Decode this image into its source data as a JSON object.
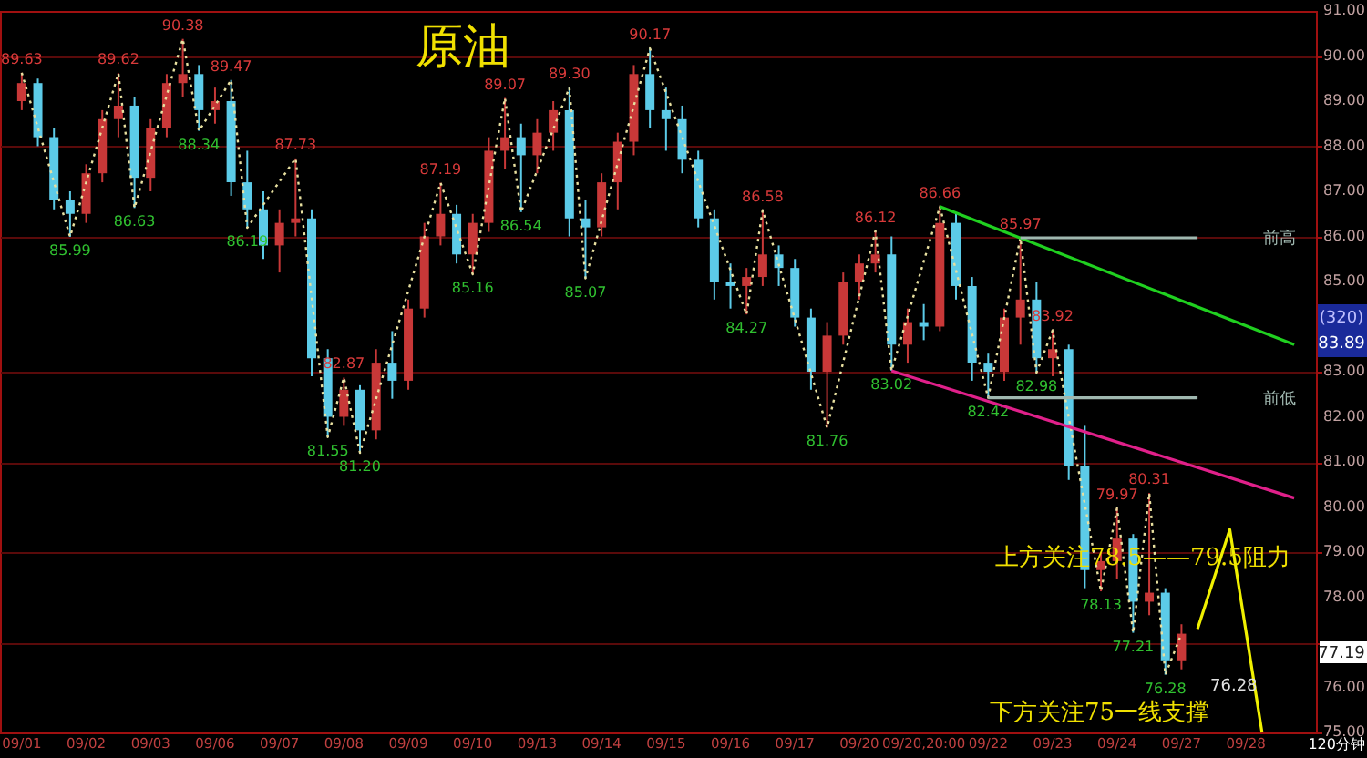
{
  "chart_data": {
    "type": "candlestick",
    "title": "原油",
    "categories": [
      "09/01",
      null,
      null,
      null,
      "09/02",
      null,
      null,
      null,
      "09/03",
      null,
      null,
      null,
      "09/06",
      null,
      null,
      null,
      "09/07",
      null,
      null,
      null,
      "09/08",
      null,
      null,
      null,
      "09/09",
      null,
      null,
      null,
      "09/10",
      null,
      null,
      null,
      "09/13",
      null,
      null,
      null,
      "09/14",
      null,
      null,
      null,
      "09/15",
      null,
      null,
      null,
      "09/16",
      null,
      null,
      null,
      "09/17",
      null,
      null,
      null,
      "09/20",
      null,
      null,
      null,
      "09/20,20:00",
      null,
      null,
      null,
      "09/22",
      null,
      null,
      null,
      "09/23",
      null,
      null,
      null,
      "09/24",
      null,
      null,
      null,
      "09/27",
      null,
      null,
      null,
      "09/28",
      null,
      null,
      null
    ],
    "ohlc": [
      [
        89.0,
        89.63,
        88.8,
        89.4
      ],
      [
        89.4,
        89.5,
        88.0,
        88.2
      ],
      [
        88.2,
        88.4,
        86.6,
        86.8
      ],
      [
        86.8,
        87.0,
        85.99,
        86.5
      ],
      [
        86.5,
        87.6,
        86.3,
        87.4
      ],
      [
        87.4,
        88.8,
        87.2,
        88.6
      ],
      [
        88.6,
        89.62,
        88.2,
        88.9
      ],
      [
        88.9,
        89.1,
        86.63,
        87.3
      ],
      [
        87.3,
        88.6,
        87.0,
        88.4
      ],
      [
        88.4,
        89.6,
        88.2,
        89.4
      ],
      [
        89.4,
        90.38,
        89.1,
        89.6
      ],
      [
        89.6,
        89.8,
        88.34,
        88.8
      ],
      [
        88.8,
        89.3,
        88.5,
        89.0
      ],
      [
        89.0,
        89.47,
        86.9,
        87.2
      ],
      [
        87.2,
        87.9,
        86.19,
        86.6
      ],
      [
        86.6,
        87.0,
        85.5,
        85.8
      ],
      [
        85.8,
        86.6,
        85.2,
        86.3
      ],
      [
        86.3,
        87.73,
        86.0,
        86.4
      ],
      [
        86.4,
        86.6,
        82.9,
        83.3
      ],
      [
        83.3,
        83.5,
        81.55,
        82.0
      ],
      [
        82.0,
        82.87,
        81.8,
        82.6
      ],
      [
        82.6,
        82.7,
        81.2,
        81.7
      ],
      [
        81.7,
        83.5,
        81.5,
        83.2
      ],
      [
        83.2,
        83.9,
        82.4,
        82.8
      ],
      [
        82.8,
        84.6,
        82.6,
        84.4
      ],
      [
        84.4,
        86.3,
        84.2,
        86.0
      ],
      [
        86.0,
        87.19,
        85.8,
        86.5
      ],
      [
        86.5,
        86.7,
        85.4,
        85.6
      ],
      [
        85.6,
        86.5,
        85.16,
        86.3
      ],
      [
        86.3,
        88.2,
        86.1,
        87.9
      ],
      [
        87.9,
        89.07,
        87.5,
        88.2
      ],
      [
        88.2,
        88.5,
        86.54,
        87.8
      ],
      [
        87.8,
        88.6,
        87.4,
        88.3
      ],
      [
        88.3,
        89.0,
        87.9,
        88.8
      ],
      [
        88.8,
        89.3,
        86.0,
        86.4
      ],
      [
        86.4,
        86.8,
        85.07,
        86.2
      ],
      [
        86.2,
        87.4,
        86.0,
        87.2
      ],
      [
        87.2,
        88.3,
        86.6,
        88.1
      ],
      [
        88.1,
        89.8,
        87.8,
        89.6
      ],
      [
        89.6,
        90.17,
        88.4,
        88.8
      ],
      [
        88.8,
        89.3,
        87.9,
        88.6
      ],
      [
        88.6,
        88.9,
        87.4,
        87.7
      ],
      [
        87.7,
        87.9,
        86.2,
        86.4
      ],
      [
        86.4,
        86.6,
        84.6,
        85.0
      ],
      [
        85.0,
        85.4,
        84.4,
        84.9
      ],
      [
        84.9,
        85.3,
        84.27,
        85.1
      ],
      [
        85.1,
        86.58,
        84.9,
        85.6
      ],
      [
        85.6,
        85.8,
        84.9,
        85.3
      ],
      [
        85.3,
        85.5,
        84.0,
        84.2
      ],
      [
        84.2,
        84.4,
        82.6,
        83.0
      ],
      [
        83.0,
        84.1,
        81.76,
        83.8
      ],
      [
        83.8,
        85.2,
        83.6,
        85.0
      ],
      [
        85.0,
        85.6,
        84.6,
        85.4
      ],
      [
        85.4,
        86.12,
        85.2,
        85.6
      ],
      [
        85.6,
        86.0,
        83.02,
        83.6
      ],
      [
        83.6,
        84.4,
        83.2,
        84.1
      ],
      [
        84.1,
        84.5,
        83.7,
        84.0
      ],
      [
        84.0,
        86.66,
        83.9,
        86.3
      ],
      [
        86.3,
        86.5,
        84.6,
        84.9
      ],
      [
        84.9,
        85.1,
        82.8,
        83.2
      ],
      [
        83.2,
        83.4,
        82.42,
        83.0
      ],
      [
        83.0,
        84.4,
        82.8,
        84.2
      ],
      [
        84.2,
        85.97,
        83.6,
        84.6
      ],
      [
        84.6,
        85.0,
        82.98,
        83.3
      ],
      [
        83.3,
        83.92,
        82.9,
        83.5
      ],
      [
        83.5,
        83.6,
        80.6,
        80.9
      ],
      [
        80.9,
        81.8,
        78.2,
        78.6
      ],
      [
        78.6,
        79.0,
        78.13,
        78.8
      ],
      [
        78.8,
        79.97,
        78.4,
        79.3
      ],
      [
        79.3,
        79.4,
        77.21,
        77.9
      ],
      [
        77.9,
        80.31,
        77.6,
        78.1
      ],
      [
        78.1,
        78.2,
        76.28,
        76.6
      ],
      [
        76.6,
        77.4,
        76.4,
        77.19
      ],
      null,
      null,
      null,
      null,
      null,
      null,
      null
    ],
    "colors": [
      "#c83838",
      "#5ccbe8",
      "#5ccbe8",
      "#5ccbe8",
      "#c83838",
      "#c83838",
      "#c83838",
      "#5ccbe8",
      "#c83838",
      "#c83838",
      "#c83838",
      "#5ccbe8",
      "#c83838",
      "#5ccbe8",
      "#5ccbe8",
      "#5ccbe8",
      "#c83838",
      "#c83838",
      "#5ccbe8",
      "#5ccbe8",
      "#c83838",
      "#5ccbe8",
      "#c83838",
      "#5ccbe8",
      "#c83838",
      "#c83838",
      "#c83838",
      "#5ccbe8",
      "#c83838",
      "#c83838",
      "#c83838",
      "#5ccbe8",
      "#c83838",
      "#c83838",
      "#5ccbe8",
      "#5ccbe8",
      "#c83838",
      "#c83838",
      "#c83838",
      "#5ccbe8",
      "#5ccbe8",
      "#5ccbe8",
      "#5ccbe8",
      "#5ccbe8",
      "#5ccbe8",
      "#c83838",
      "#c83838",
      "#5ccbe8",
      "#5ccbe8",
      "#5ccbe8",
      "#c83838",
      "#c83838",
      "#c83838",
      "#c83838",
      "#5ccbe8",
      "#c83838",
      "#5ccbe8",
      "#c83838",
      "#5ccbe8",
      "#5ccbe8",
      "#5ccbe8",
      "#c83838",
      "#c83838",
      "#5ccbe8",
      "#c83838",
      "#5ccbe8",
      "#5ccbe8",
      "#c83838",
      "#c83838",
      "#5ccbe8",
      "#c83838",
      "#5ccbe8",
      "#c83838",
      null,
      null,
      null,
      null,
      null,
      null,
      null
    ],
    "series": [
      {
        "type": "line",
        "line_style": "dotted",
        "color": "#e8e0a0",
        "values": [
          89.63,
          null,
          null,
          85.99,
          null,
          null,
          89.62,
          86.63,
          null,
          null,
          90.38,
          88.34,
          null,
          89.47,
          86.19,
          null,
          null,
          87.73,
          null,
          81.55,
          82.87,
          81.2,
          null,
          null,
          null,
          null,
          87.19,
          null,
          85.16,
          null,
          89.07,
          86.54,
          null,
          null,
          89.3,
          85.07,
          null,
          null,
          null,
          90.17,
          null,
          null,
          null,
          null,
          null,
          84.27,
          86.58,
          null,
          null,
          null,
          81.76,
          null,
          null,
          86.12,
          83.02,
          null,
          null,
          86.66,
          null,
          null,
          82.42,
          null,
          85.97,
          82.98,
          83.92,
          null,
          null,
          78.13,
          79.97,
          77.21,
          80.31,
          76.28,
          77.19,
          null,
          null,
          null,
          null,
          null,
          null,
          null
        ],
        "value_labels": [
          "89.63",
          null,
          null,
          "85.99",
          null,
          null,
          "89.62",
          "86.63",
          null,
          null,
          "90.38",
          "88.34",
          null,
          "89.47",
          "86.19",
          null,
          null,
          "87.73",
          null,
          "81.55",
          "82.87",
          "81.20",
          null,
          null,
          null,
          null,
          "87.19",
          null,
          "85.16",
          null,
          "89.07",
          "86.54",
          null,
          null,
          "89.30",
          "85.07",
          null,
          null,
          null,
          "90.17",
          null,
          null,
          null,
          null,
          null,
          "84.27",
          "86.58",
          null,
          null,
          null,
          "81.76",
          null,
          null,
          "86.12",
          "83.02",
          null,
          null,
          "86.66",
          null,
          null,
          "82.42",
          null,
          "85.97",
          "82.98",
          "83.92",
          null,
          null,
          "78.13",
          "79.97",
          "77.21",
          "80.31",
          "76.28",
          null,
          null,
          null,
          null,
          null,
          null,
          null,
          null
        ]
      },
      {
        "type": "line",
        "line_style": "solid",
        "color": "#20d020",
        "values": [
          null,
          null,
          null,
          null,
          null,
          null,
          null,
          null,
          null,
          null,
          null,
          null,
          null,
          null,
          null,
          null,
          null,
          null,
          null,
          null,
          null,
          null,
          null,
          null,
          null,
          null,
          null,
          null,
          null,
          null,
          null,
          null,
          null,
          null,
          null,
          null,
          null,
          null,
          null,
          null,
          null,
          null,
          null,
          null,
          null,
          null,
          null,
          null,
          null,
          null,
          null,
          null,
          null,
          null,
          null,
          null,
          null,
          86.66,
          null,
          null,
          null,
          null,
          null,
          null,
          null,
          null,
          null,
          null,
          null,
          null,
          null,
          null,
          null,
          null,
          null,
          null,
          null,
          null,
          null,
          83.6
        ]
      },
      {
        "type": "line",
        "line_style": "solid",
        "color": "#e0208a",
        "values": [
          null,
          null,
          null,
          null,
          null,
          null,
          null,
          null,
          null,
          null,
          null,
          null,
          null,
          null,
          null,
          null,
          null,
          null,
          null,
          null,
          null,
          null,
          null,
          null,
          null,
          null,
          null,
          null,
          null,
          null,
          null,
          null,
          null,
          null,
          null,
          null,
          null,
          null,
          null,
          null,
          null,
          null,
          null,
          null,
          null,
          null,
          null,
          null,
          null,
          null,
          null,
          null,
          null,
          null,
          83.02,
          null,
          null,
          null,
          null,
          null,
          null,
          null,
          null,
          null,
          null,
          null,
          null,
          null,
          null,
          null,
          null,
          null,
          null,
          null,
          null,
          null,
          null,
          null,
          null,
          80.2
        ]
      },
      {
        "type": "line",
        "line_style": "solid",
        "name": "前高",
        "color": "#a0b8b0",
        "values": [
          null,
          null,
          null,
          null,
          null,
          null,
          null,
          null,
          null,
          null,
          null,
          null,
          null,
          null,
          null,
          null,
          null,
          null,
          null,
          null,
          null,
          null,
          null,
          null,
          null,
          null,
          null,
          null,
          null,
          null,
          null,
          null,
          null,
          null,
          null,
          null,
          null,
          null,
          null,
          null,
          null,
          null,
          null,
          null,
          null,
          null,
          null,
          null,
          null,
          null,
          null,
          null,
          null,
          null,
          null,
          null,
          null,
          null,
          null,
          null,
          null,
          null,
          85.97,
          null,
          null,
          null,
          null,
          null,
          null,
          null,
          null,
          null,
          null,
          85.97,
          null,
          null,
          null,
          null,
          null,
          null
        ]
      },
      {
        "type": "line",
        "line_style": "solid",
        "name": "前低",
        "color": "#a0b8b0",
        "values": [
          null,
          null,
          null,
          null,
          null,
          null,
          null,
          null,
          null,
          null,
          null,
          null,
          null,
          null,
          null,
          null,
          null,
          null,
          null,
          null,
          null,
          null,
          null,
          null,
          null,
          null,
          null,
          null,
          null,
          null,
          null,
          null,
          null,
          null,
          null,
          null,
          null,
          null,
          null,
          null,
          null,
          null,
          null,
          null,
          null,
          null,
          null,
          null,
          null,
          null,
          null,
          null,
          null,
          null,
          null,
          null,
          null,
          null,
          null,
          null,
          82.42,
          null,
          null,
          null,
          null,
          null,
          null,
          null,
          null,
          null,
          null,
          null,
          null,
          82.42,
          null,
          null,
          null,
          null,
          null,
          null
        ]
      },
      {
        "type": "line",
        "line_style": "solid",
        "color": "#f0f000",
        "values": [
          null,
          null,
          null,
          null,
          null,
          null,
          null,
          null,
          null,
          null,
          null,
          null,
          null,
          null,
          null,
          null,
          null,
          null,
          null,
          null,
          null,
          null,
          null,
          null,
          null,
          null,
          null,
          null,
          null,
          null,
          null,
          null,
          null,
          null,
          null,
          null,
          null,
          null,
          null,
          null,
          null,
          null,
          null,
          null,
          null,
          null,
          null,
          null,
          null,
          null,
          null,
          null,
          null,
          null,
          null,
          null,
          null,
          null,
          null,
          null,
          null,
          null,
          null,
          null,
          null,
          null,
          null,
          null,
          null,
          null,
          null,
          null,
          null,
          77.3,
          null,
          79.5,
          null,
          75.0,
          null,
          null
        ]
      }
    ],
    "ylim": [
      75.0,
      91.0
    ],
    "yticks": [
      {
        "value": 75,
        "label": "75.00"
      },
      {
        "value": 76,
        "label": "76.00"
      },
      {
        "value": 77,
        "label": null
      },
      {
        "value": 78,
        "label": "78.00"
      },
      {
        "value": 79,
        "label": "79.00"
      },
      {
        "value": 80,
        "label": "80.00"
      },
      {
        "value": 81,
        "label": "81.00"
      },
      {
        "value": 82,
        "label": "82.00"
      },
      {
        "value": 83,
        "label": "83.00"
      },
      {
        "value": 85,
        "label": "85.00"
      },
      {
        "value": 86,
        "label": "86.00"
      },
      {
        "value": 87,
        "label": "87.00"
      },
      {
        "value": 88,
        "label": "88.00"
      },
      {
        "value": 89,
        "label": "89.00"
      },
      {
        "value": 90,
        "label": "90.00"
      },
      {
        "value": 91,
        "label": "91.00"
      }
    ],
    "grid": "y",
    "annotations": [
      "上方关注78.5——79.5阻力",
      "下方关注75一线支撑",
      "76.28",
      "77.19",
      "(320)",
      "83.89",
      "120分钟"
    ]
  }
}
